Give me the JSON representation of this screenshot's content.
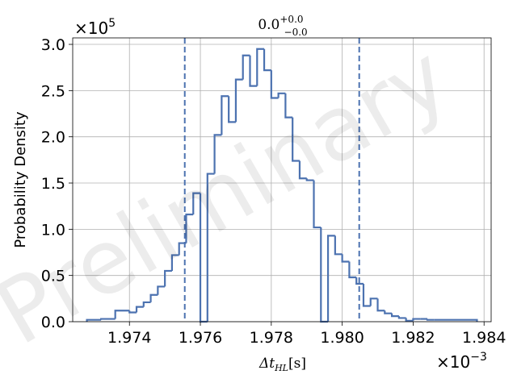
{
  "chart_data": {
    "type": "histogram",
    "title": {
      "main": "0.0",
      "sup": "+0.0",
      "sub": "−0.0"
    },
    "xlabel": {
      "prefix": "Δt",
      "sub": "HL",
      "unit": "[s]"
    },
    "ylabel": "Probability Density",
    "x_multiplier": {
      "base": "×10",
      "exp": "−3"
    },
    "y_multiplier": {
      "base": "×10",
      "exp": "5"
    },
    "xlim": [
      1.9724,
      1.9842
    ],
    "ylim": [
      0,
      3.07
    ],
    "xticks": [
      "1.974",
      "1.976",
      "1.978",
      "1.980",
      "1.982",
      "1.984"
    ],
    "xtick_values": [
      1.974,
      1.976,
      1.978,
      1.98,
      1.982,
      1.984
    ],
    "yticks": [
      "0.0",
      "0.5",
      "1.0",
      "1.5",
      "2.0",
      "2.5",
      "3.0"
    ],
    "ytick_values": [
      0,
      0.5,
      1.0,
      1.5,
      2.0,
      2.5,
      3.0
    ],
    "grid": true,
    "bin_edges": [
      1.9728,
      1.9732,
      1.9736,
      1.974,
      1.9742,
      1.9744,
      1.9746,
      1.9748,
      1.975,
      1.9752,
      1.9754,
      1.9756,
      1.9758,
      1.976,
      1.9762,
      1.9764,
      1.9766,
      1.9768,
      1.977,
      1.9772,
      1.9774,
      1.9776,
      1.9778,
      1.978,
      1.9782,
      1.9784,
      1.9786,
      1.9788,
      1.979,
      1.9792,
      1.9794,
      1.9796,
      1.9798,
      1.98,
      1.9802,
      1.9804,
      1.9806,
      1.9808,
      1.981,
      1.9812,
      1.9814,
      1.9816,
      1.9818,
      1.982,
      1.9822,
      1.9824,
      1.9826,
      1.9838
    ],
    "densities": [
      0.02,
      0.03,
      0.12,
      0.1,
      0.16,
      0.21,
      0.29,
      0.38,
      0.55,
      0.72,
      0.85,
      1.16,
      1.39,
      0.0,
      1.6,
      2.02,
      2.44,
      2.16,
      2.62,
      2.88,
      2.55,
      2.95,
      2.72,
      2.42,
      2.47,
      2.21,
      1.74,
      1.55,
      1.53,
      1.02,
      0.0,
      0.93,
      0.73,
      0.65,
      0.48,
      0.41,
      0.17,
      0.25,
      0.12,
      0.09,
      0.06,
      0.04,
      0.01,
      0.03,
      0.03,
      0.02,
      0.02
    ],
    "interval_lines": [
      1.97556,
      1.98048
    ],
    "line_color": "#4c72b0",
    "watermark": "Preliminary"
  }
}
